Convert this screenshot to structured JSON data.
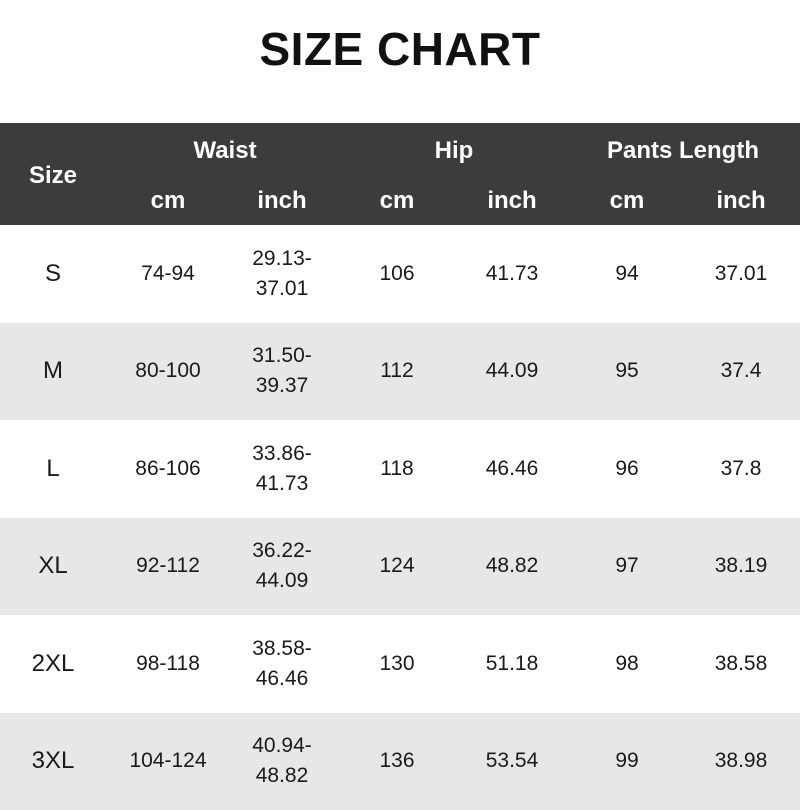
{
  "title": "SIZE CHART",
  "header": {
    "size": "Size",
    "groups": [
      "Waist",
      "Hip",
      "Pants Length"
    ],
    "units": [
      "cm",
      "inch",
      "cm",
      "inch",
      "cm",
      "inch"
    ]
  },
  "rows": [
    {
      "size": "S",
      "waist_cm": "74-94",
      "waist_inch": "29.13-\n37.01",
      "hip_cm": "106",
      "hip_inch": "41.73",
      "length_cm": "94",
      "length_inch": "37.01"
    },
    {
      "size": "M",
      "waist_cm": "80-100",
      "waist_inch": "31.50-\n39.37",
      "hip_cm": "112",
      "hip_inch": "44.09",
      "length_cm": "95",
      "length_inch": "37.4"
    },
    {
      "size": "L",
      "waist_cm": "86-106",
      "waist_inch": "33.86-\n41.73",
      "hip_cm": "118",
      "hip_inch": "46.46",
      "length_cm": "96",
      "length_inch": "37.8"
    },
    {
      "size": "XL",
      "waist_cm": "92-112",
      "waist_inch": "36.22-\n44.09",
      "hip_cm": "124",
      "hip_inch": "48.82",
      "length_cm": "97",
      "length_inch": "38.19"
    },
    {
      "size": "2XL",
      "waist_cm": "98-118",
      "waist_inch": "38.58-\n46.46",
      "hip_cm": "130",
      "hip_inch": "51.18",
      "length_cm": "98",
      "length_inch": "38.58"
    },
    {
      "size": "3XL",
      "waist_cm": "104-124",
      "waist_inch": "40.94-\n48.82",
      "hip_cm": "136",
      "hip_inch": "53.54",
      "length_cm": "99",
      "length_inch": "38.98"
    }
  ],
  "colors": {
    "header_bg": "#3e3b3c",
    "alt_row_bg": "#e8e6e7"
  }
}
